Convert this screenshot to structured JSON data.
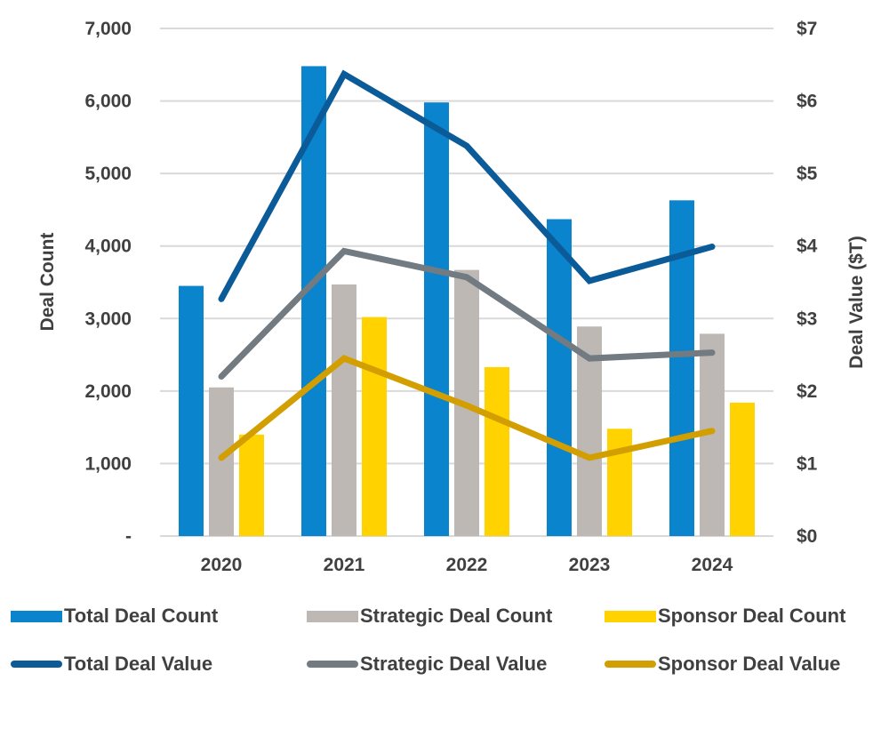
{
  "chart_data": {
    "type": "bar",
    "title": "",
    "categories": [
      "2020",
      "2021",
      "2022",
      "2023",
      "2024"
    ],
    "ylabel": "Deal Count",
    "y2label": "Deal Value ($T)",
    "ylim": [
      0,
      7000
    ],
    "y2lim": [
      0,
      7
    ],
    "yticks": [
      "-",
      "1,000",
      "2,000",
      "3,000",
      "4,000",
      "5,000",
      "6,000",
      "7,000"
    ],
    "y2ticks": [
      "$0",
      "$1",
      "$2",
      "$3",
      "$4",
      "$5",
      "$6",
      "$7"
    ],
    "grid": true,
    "legend_position": "bottom",
    "bar_series": [
      {
        "name": "Total Deal Count",
        "color": "#0A84CC",
        "values": [
          3450,
          6480,
          5980,
          4370,
          4630
        ]
      },
      {
        "name": "Strategic Deal Count",
        "color": "#BDB8B3",
        "values": [
          2050,
          3470,
          3670,
          2890,
          2790
        ]
      },
      {
        "name": "Sponsor Deal Count",
        "color": "#FFD200",
        "values": [
          1400,
          3020,
          2330,
          1480,
          1840
        ]
      }
    ],
    "line_series": [
      {
        "name": "Total Deal Value",
        "color": "#0B5B99",
        "axis": "right",
        "values": [
          3.27,
          6.37,
          5.38,
          3.52,
          3.99
        ]
      },
      {
        "name": "Strategic Deal Value",
        "color": "#727A82",
        "axis": "right",
        "values": [
          2.2,
          3.93,
          3.57,
          2.45,
          2.53
        ]
      },
      {
        "name": "Sponsor Deal Value",
        "color": "#D39E00",
        "axis": "right",
        "values": [
          1.08,
          2.45,
          1.8,
          1.08,
          1.45
        ]
      }
    ]
  },
  "legend": [
    {
      "label": "Total Deal Count",
      "kind": "bar",
      "color": "#0A84CC"
    },
    {
      "label": "Strategic Deal Count",
      "kind": "bar",
      "color": "#BDB8B3"
    },
    {
      "label": "Sponsor Deal Count",
      "kind": "bar",
      "color": "#FFD200"
    },
    {
      "label": "Total Deal Value",
      "kind": "line",
      "color": "#0B5B99"
    },
    {
      "label": "Strategic Deal Value",
      "kind": "line",
      "color": "#727A82"
    },
    {
      "label": "Sponsor Deal Value",
      "kind": "line",
      "color": "#D39E00"
    }
  ]
}
